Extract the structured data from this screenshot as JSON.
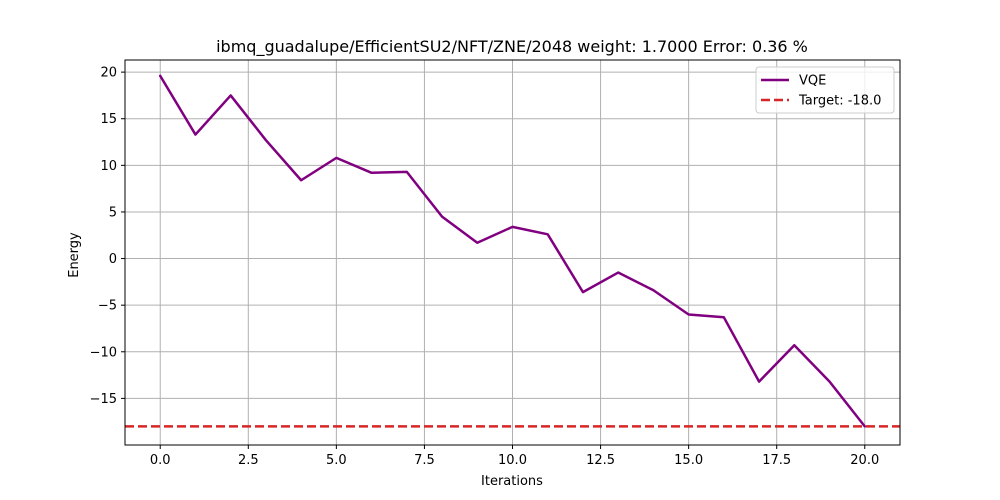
{
  "chart_data": {
    "type": "line",
    "title": "ibmq_guadalupe/EfficientSU2/NFT/ZNE/2048 weight: 1.7000 Error: 0.36 %",
    "xlabel": "Iterations",
    "ylabel": "Energy",
    "xlim": [
      -1.0,
      21.0
    ],
    "ylim": [
      -20.0,
      21.3
    ],
    "xticks": [
      0.0,
      2.5,
      5.0,
      7.5,
      10.0,
      12.5,
      15.0,
      17.5,
      20.0
    ],
    "xtick_labels": [
      "0.0",
      "2.5",
      "5.0",
      "7.5",
      "10.0",
      "12.5",
      "15.0",
      "17.5",
      "20.0"
    ],
    "yticks": [
      -15,
      -10,
      -5,
      0,
      5,
      10,
      15,
      20
    ],
    "ytick_labels": [
      "−15",
      "−10",
      "−5",
      "0",
      "5",
      "10",
      "15",
      "20"
    ],
    "grid": true,
    "legend_position": "top-right",
    "series": [
      {
        "name": "VQE",
        "color": "#800080",
        "style": "solid",
        "x": [
          0,
          1,
          2,
          3,
          4,
          5,
          6,
          7,
          8,
          9,
          10,
          11,
          12,
          13,
          14,
          15,
          16,
          17,
          18,
          19,
          20
        ],
        "y": [
          19.6,
          13.3,
          17.5,
          12.7,
          8.4,
          10.8,
          9.2,
          9.3,
          4.5,
          1.7,
          3.4,
          2.6,
          -3.6,
          -1.5,
          -3.4,
          -6.0,
          -6.3,
          -13.2,
          -9.3,
          -13.2,
          -18.0
        ]
      }
    ],
    "reference_lines": [
      {
        "name": "Target: -18.0",
        "value": -18.0,
        "orientation": "horizontal",
        "color": "#d62728",
        "style": "dashed"
      }
    ]
  }
}
